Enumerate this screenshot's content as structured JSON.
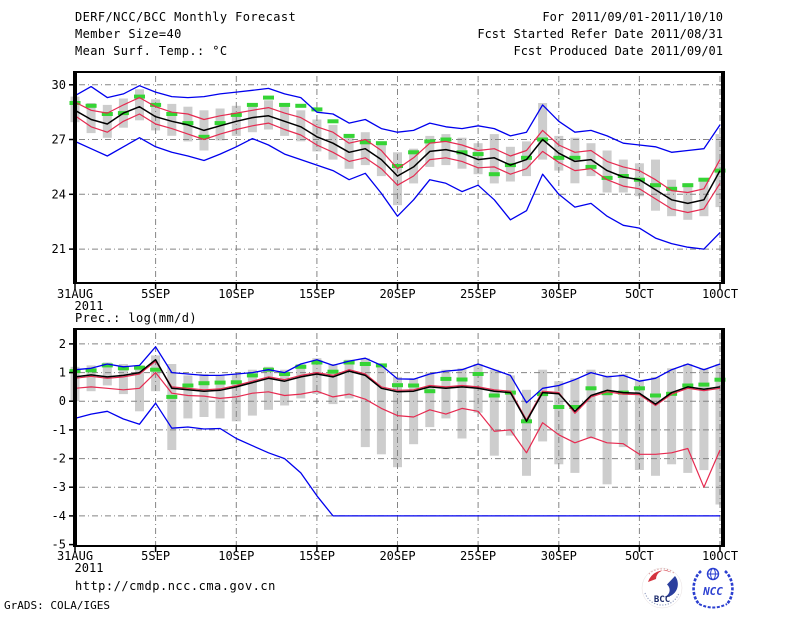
{
  "header": {
    "left": [
      "DERF/NCC/BCC Monthly Forecast",
      "Member Size=40"
    ],
    "right": [
      "For 2011/09/01-2011/10/10",
      "Fcst Started Refer Date 2011/08/31",
      "Fcst Produced Date 2011/09/01"
    ]
  },
  "footer": {
    "url": "http://cmdp.ncc.cma.gov.cn",
    "grads_credit": "GrADS: COLA/IGES",
    "logos": [
      {
        "name": "bcc-logo",
        "label": "BCC"
      },
      {
        "name": "ncc-logo",
        "label": "NCC"
      }
    ]
  },
  "colors": {
    "line_blue": "#0000ee",
    "line_red": "#e62a50",
    "line_black": "#000000",
    "dash_green": "#35d435",
    "bar_gray": "#cdcdcd",
    "grid_gray": "#858585",
    "frame_black": "#000000",
    "logo_red": "#d4333e",
    "logo_navy": "#1b2a6b",
    "ncc_blue": "#2b3fd0"
  },
  "chart_data": [
    {
      "id": "surface-temp",
      "type": "line",
      "title": "Mean Surf. Temp.: °C",
      "xlabel": "",
      "ylabel": "°C",
      "x_range_days": [
        0,
        40
      ],
      "x_tick_days": [
        0,
        5,
        10,
        15,
        20,
        25,
        30,
        35,
        40
      ],
      "x_tick_labels": [
        "31AUG",
        "5SEP",
        "10SEP",
        "15SEP",
        "20SEP",
        "25SEP",
        "30SEP",
        "5OCT",
        "10OCT"
      ],
      "x_start_year_label": "2011",
      "ylim": [
        19.1,
        30.7
      ],
      "yticks": [
        30,
        27,
        24,
        21
      ],
      "grid": true,
      "legend_position": "none",
      "series": [
        {
          "name": "ensemble-max",
          "color": "#0000ee",
          "width": 1.3,
          "values": [
            29.4,
            29.9,
            29.3,
            29.5,
            29.95,
            29.6,
            29.35,
            29.3,
            29.35,
            29.5,
            29.6,
            29.7,
            29.8,
            29.5,
            29.3,
            28.5,
            28.4,
            27.9,
            28.1,
            27.6,
            27.4,
            27.5,
            27.9,
            27.7,
            27.6,
            27.75,
            27.6,
            27.2,
            27.4,
            28.9,
            28.0,
            27.4,
            27.5,
            27.2,
            26.8,
            26.7,
            26.6,
            26.3,
            26.4,
            26.5,
            27.8
          ]
        },
        {
          "name": "upper-quartile",
          "color": "#e62a50",
          "width": 1.2,
          "values": [
            29.05,
            28.6,
            28.45,
            28.9,
            29.3,
            28.8,
            28.5,
            28.4,
            28.1,
            28.3,
            28.45,
            28.6,
            28.75,
            28.45,
            28.2,
            27.7,
            27.4,
            26.8,
            27.0,
            26.4,
            25.4,
            26.0,
            26.8,
            26.9,
            26.7,
            26.4,
            26.5,
            26.1,
            26.4,
            27.5,
            26.7,
            26.3,
            26.4,
            25.8,
            25.5,
            25.3,
            24.8,
            24.2,
            24.1,
            24.3,
            25.9
          ]
        },
        {
          "name": "lower-quartile",
          "color": "#e62a50",
          "width": 1.2,
          "values": [
            28.3,
            27.7,
            27.4,
            28.0,
            28.4,
            27.85,
            27.6,
            27.3,
            27.0,
            27.3,
            27.55,
            27.75,
            27.9,
            27.55,
            27.25,
            26.7,
            26.3,
            25.8,
            26.0,
            25.4,
            24.5,
            25.0,
            25.9,
            26.0,
            25.8,
            25.45,
            25.5,
            25.1,
            25.4,
            26.35,
            25.75,
            25.3,
            25.4,
            24.8,
            24.45,
            24.3,
            23.75,
            23.2,
            23.0,
            23.2,
            24.6
          ]
        },
        {
          "name": "ensemble-min",
          "color": "#0000ee",
          "width": 1.3,
          "values": [
            26.9,
            26.5,
            26.1,
            26.6,
            27.1,
            26.6,
            26.3,
            26.1,
            25.85,
            26.2,
            26.6,
            27.05,
            26.7,
            26.2,
            25.9,
            25.6,
            25.3,
            24.8,
            25.15,
            24.05,
            22.8,
            23.7,
            24.8,
            24.6,
            24.15,
            24.5,
            23.7,
            22.6,
            23.1,
            25.1,
            24.0,
            23.3,
            23.5,
            22.8,
            22.3,
            22.15,
            21.6,
            21.3,
            21.1,
            21.0,
            21.9
          ]
        },
        {
          "name": "ensemble-mean",
          "color": "#000000",
          "width": 1.5,
          "values": [
            28.6,
            28.1,
            27.85,
            28.45,
            28.8,
            28.25,
            28.0,
            27.8,
            27.5,
            27.75,
            28.0,
            28.2,
            28.3,
            28.0,
            27.7,
            27.15,
            26.8,
            26.3,
            26.5,
            25.9,
            25.0,
            25.5,
            26.35,
            26.45,
            26.25,
            25.9,
            26.0,
            25.6,
            25.9,
            27.0,
            26.25,
            25.8,
            25.9,
            25.3,
            24.95,
            24.8,
            24.25,
            23.7,
            23.5,
            23.7,
            25.3
          ]
        }
      ],
      "spread_bars": {
        "name": "ensemble-spread",
        "color": "#cdcdcd",
        "low": [
          27.95,
          27.35,
          27.1,
          27.65,
          28.05,
          27.5,
          27.2,
          26.9,
          26.4,
          26.95,
          27.2,
          27.4,
          27.55,
          27.2,
          26.9,
          26.35,
          25.9,
          25.4,
          25.6,
          25.0,
          23.4,
          24.6,
          25.5,
          25.6,
          25.4,
          25.1,
          24.6,
          24.7,
          25.0,
          25.9,
          25.3,
          24.6,
          25.0,
          24.1,
          24.1,
          23.9,
          23.1,
          22.8,
          22.6,
          22.8,
          23.3
        ],
        "high": [
          29.35,
          29.0,
          28.9,
          29.25,
          29.75,
          29.2,
          28.95,
          28.8,
          28.6,
          28.7,
          28.85,
          29.0,
          29.15,
          28.85,
          28.6,
          28.1,
          27.8,
          27.3,
          27.4,
          26.9,
          26.3,
          26.5,
          27.2,
          27.3,
          27.1,
          26.8,
          27.3,
          26.6,
          26.9,
          29.0,
          27.2,
          27.1,
          26.8,
          26.4,
          25.9,
          25.7,
          25.9,
          24.8,
          24.6,
          24.8,
          27.3
        ]
      },
      "obs_dashes": {
        "name": "climatology",
        "color": "#35d435",
        "values": [
          29.0,
          28.85,
          28.4,
          28.45,
          29.35,
          28.9,
          28.4,
          27.9,
          27.15,
          27.9,
          28.35,
          28.9,
          29.3,
          28.9,
          28.85,
          28.65,
          28.0,
          27.2,
          26.85,
          26.8,
          25.55,
          26.3,
          26.9,
          27.0,
          26.3,
          26.2,
          25.1,
          25.6,
          26.0,
          27.0,
          26.0,
          26.0,
          25.5,
          24.9,
          25.0,
          24.8,
          24.5,
          24.3,
          24.5,
          24.8,
          25.3
        ]
      }
    },
    {
      "id": "precip",
      "type": "line",
      "title": "Prec.: log(mm/d)",
      "xlabel": "",
      "ylabel": "log(mm/d)",
      "x_range_days": [
        0,
        40
      ],
      "x_tick_days": [
        0,
        5,
        10,
        15,
        20,
        25,
        30,
        35,
        40
      ],
      "x_tick_labels": [
        "31AUG",
        "5SEP",
        "10SEP",
        "15SEP",
        "20SEP",
        "25SEP",
        "30SEP",
        "5OCT",
        "10OCT"
      ],
      "x_start_year_label": "2011",
      "ylim": [
        -5.05,
        2.52
      ],
      "yticks": [
        2,
        1,
        0,
        -1,
        -2,
        -3,
        -4,
        -5
      ],
      "grid": true,
      "legend_position": "none",
      "series": [
        {
          "name": "ensemble-max",
          "color": "#0000ee",
          "width": 1.3,
          "values": [
            1.1,
            1.15,
            1.3,
            1.2,
            1.25,
            1.9,
            1.0,
            0.95,
            0.9,
            0.9,
            0.95,
            1.0,
            1.1,
            1.0,
            1.3,
            1.45,
            1.25,
            1.4,
            1.5,
            1.25,
            0.78,
            0.77,
            0.95,
            1.05,
            1.1,
            1.3,
            1.1,
            0.9,
            -0.05,
            0.45,
            0.55,
            0.75,
            1.0,
            0.85,
            0.9,
            0.7,
            0.8,
            1.1,
            1.3,
            1.1,
            1.3
          ]
        },
        {
          "name": "upper-quartile",
          "color": "#e62a50",
          "width": 1.2,
          "values": [
            0.8,
            0.87,
            0.8,
            0.85,
            0.95,
            1.4,
            0.5,
            0.45,
            0.4,
            0.43,
            0.55,
            0.7,
            0.85,
            0.75,
            0.9,
            1.0,
            0.9,
            1.1,
            0.95,
            0.5,
            0.38,
            0.4,
            0.55,
            0.5,
            0.55,
            0.5,
            0.4,
            0.35,
            -0.65,
            0.35,
            0.3,
            -0.42,
            0.15,
            0.33,
            0.25,
            0.23,
            -0.15,
            0.25,
            0.45,
            0.37,
            0.45
          ]
        },
        {
          "name": "lower-quartile",
          "color": "#e62a50",
          "width": 1.2,
          "values": [
            0.45,
            0.5,
            0.45,
            0.4,
            0.45,
            1.0,
            0.28,
            0.2,
            0.18,
            0.1,
            0.15,
            0.28,
            0.33,
            0.2,
            0.25,
            0.35,
            0.15,
            0.25,
            0.07,
            -0.25,
            -0.5,
            -0.55,
            -0.3,
            -0.45,
            -0.25,
            -0.35,
            -1.05,
            -1.0,
            -1.8,
            -0.75,
            -1.17,
            -1.45,
            -1.25,
            -1.45,
            -1.48,
            -1.85,
            -1.85,
            -1.8,
            -1.65,
            -3.0,
            -1.7
          ]
        },
        {
          "name": "ensemble-min",
          "color": "#0000ee",
          "width": 1.3,
          "values": [
            -0.6,
            -0.45,
            -0.35,
            -0.62,
            -0.8,
            -0.07,
            -0.94,
            -0.9,
            -0.97,
            -0.95,
            -1.3,
            -1.55,
            -1.8,
            -2.0,
            -2.5,
            -3.3,
            -4.0,
            -4.0,
            -4.0,
            -4.0,
            -4.0,
            -4.0,
            -4.0,
            -4.0,
            -4.0,
            -4.0,
            -4.0,
            -4.0,
            -4.0,
            -4.0,
            -4.0,
            -4.0,
            -4.0,
            -4.0,
            -4.0,
            -4.0,
            -4.0,
            -4.0,
            -4.0,
            -4.0,
            -4.0
          ]
        },
        {
          "name": "ensemble-mean",
          "color": "#000000",
          "width": 1.5,
          "values": [
            0.85,
            0.92,
            0.85,
            0.9,
            1.0,
            1.45,
            0.45,
            0.4,
            0.35,
            0.38,
            0.5,
            0.65,
            0.8,
            0.7,
            0.85,
            0.95,
            0.85,
            1.05,
            0.9,
            0.45,
            0.33,
            0.35,
            0.5,
            0.45,
            0.5,
            0.45,
            0.35,
            0.3,
            -0.7,
            0.3,
            0.26,
            -0.35,
            0.2,
            0.38,
            0.3,
            0.28,
            -0.1,
            0.3,
            0.5,
            0.42,
            0.5
          ]
        }
      ],
      "spread_bars": {
        "name": "ensemble-spread",
        "color": "#cdcdcd",
        "low": [
          0.0,
          0.35,
          0.55,
          0.25,
          -0.35,
          0.35,
          -1.7,
          -0.6,
          -0.55,
          -0.6,
          -0.7,
          -0.5,
          -0.3,
          -0.15,
          0.1,
          0.25,
          -0.1,
          0.1,
          -1.6,
          -1.85,
          -2.3,
          -1.5,
          -0.9,
          -0.6,
          -1.3,
          -0.4,
          -1.9,
          -1.2,
          -2.6,
          -1.4,
          -2.2,
          -2.5,
          -1.3,
          -2.9,
          -1.6,
          -2.4,
          -2.6,
          -2.2,
          -2.5,
          -2.4,
          -3.6
        ],
        "high": [
          1.2,
          1.25,
          1.35,
          1.3,
          1.25,
          1.6,
          1.3,
          0.9,
          0.95,
          0.9,
          0.95,
          1.1,
          1.2,
          1.1,
          1.3,
          1.5,
          1.3,
          1.45,
          1.5,
          1.3,
          0.85,
          0.8,
          1.0,
          1.1,
          1.15,
          1.3,
          1.1,
          0.9,
          0.4,
          1.1,
          0.7,
          0.8,
          1.1,
          0.9,
          0.95,
          0.75,
          0.85,
          1.15,
          1.3,
          1.15,
          1.3
        ]
      },
      "obs_dashes": {
        "name": "climatology",
        "color": "#35d435",
        "values": [
          1.05,
          1.08,
          1.25,
          1.15,
          1.17,
          1.1,
          0.15,
          0.55,
          0.63,
          0.65,
          0.66,
          0.9,
          1.1,
          0.95,
          1.2,
          1.35,
          1.03,
          1.35,
          1.3,
          1.25,
          0.56,
          0.55,
          0.35,
          0.78,
          0.76,
          0.95,
          0.2,
          0.3,
          -0.7,
          0.25,
          -0.2,
          -0.2,
          0.45,
          0.28,
          0.3,
          0.45,
          0.2,
          0.26,
          0.55,
          0.58,
          0.75
        ]
      }
    }
  ]
}
